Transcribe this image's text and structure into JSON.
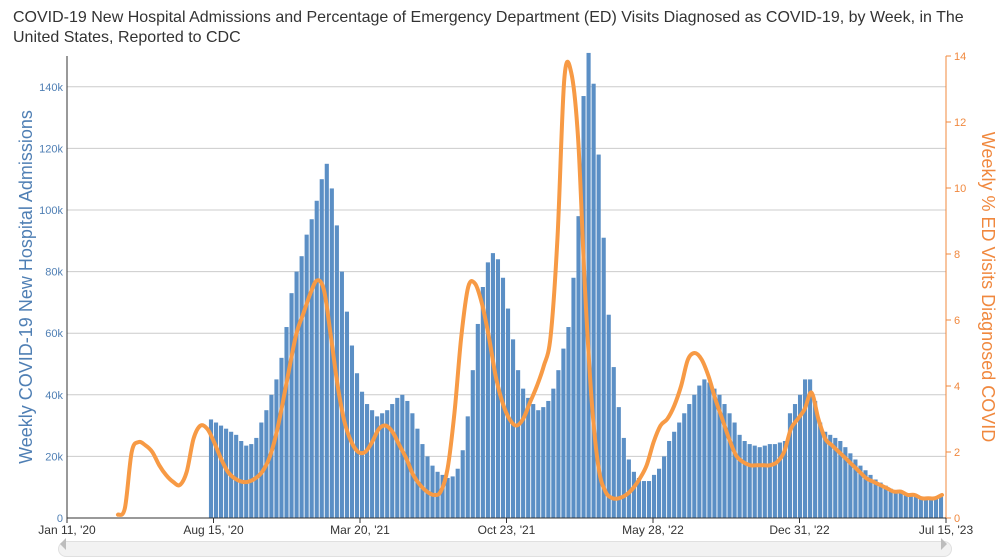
{
  "chart_data": {
    "type": "bar+line",
    "title": "COVID-19 New Hospital Admissions and Percentage of Emergency Department (ED) Visits Diagnosed as COVID-19, by Week, in The United States, Reported to CDC",
    "ylabel_left": "Weekly COVID-19 New Hospital Admissions",
    "ylabel_right": "Weekly % ED Visits Diagnosed COVID",
    "x_ticks": [
      "Jan 11, '20",
      "Aug 15, '20",
      "Mar 20, '21",
      "Oct 23, '21",
      "May 28, '22",
      "Dec 31, '22",
      "Jul 15, '23"
    ],
    "ylim_left": [
      0,
      150000
    ],
    "y_ticks_left": [
      "0",
      "20k",
      "40k",
      "60k",
      "80k",
      "100k",
      "120k",
      "140k"
    ],
    "ylim_right": [
      0,
      14
    ],
    "y_ticks_right": [
      "0",
      "2",
      "4",
      "6",
      "8",
      "10",
      "12",
      "14"
    ],
    "grid": true,
    "colors": {
      "bars": "#5b8fc5",
      "line": "#f79a45",
      "left_axis": "#4f7fb4",
      "right_axis": "#f0883e"
    },
    "series": [
      {
        "name": "Weekly COVID-19 New Hospital Admissions",
        "axis": "left",
        "type": "bar",
        "values": [
          32000,
          31000,
          30000,
          29000,
          28000,
          27000,
          25000,
          23500,
          24000,
          26000,
          31000,
          35000,
          40000,
          45000,
          52000,
          62000,
          73000,
          80000,
          85000,
          92000,
          97000,
          103000,
          110000,
          115000,
          107000,
          95000,
          80000,
          67000,
          56000,
          47000,
          41000,
          37000,
          35000,
          33000,
          34000,
          35000,
          37000,
          39000,
          40000,
          38000,
          34000,
          29000,
          24000,
          20000,
          17000,
          15000,
          14000,
          13000,
          13500,
          16000,
          22000,
          33000,
          48000,
          63000,
          75000,
          83000,
          86000,
          84000,
          78000,
          68000,
          58000,
          48000,
          42000,
          39000,
          37000,
          35000,
          36000,
          38000,
          42000,
          48000,
          55000,
          62000,
          78000,
          98000,
          137000,
          151000,
          141000,
          118000,
          91000,
          66000,
          49000,
          36000,
          26000,
          19000,
          15000,
          13000,
          12000,
          12000,
          14000,
          16000,
          20000,
          25000,
          28000,
          31000,
          34000,
          37000,
          40000,
          43000,
          45000,
          44000,
          42000,
          40000,
          37000,
          34000,
          31000,
          27000,
          25000,
          24000,
          23500,
          23000,
          23500,
          24000,
          24000,
          24500,
          25000,
          34000,
          37000,
          40000,
          45000,
          45000,
          38000,
          31000,
          28000,
          27000,
          26000,
          25000,
          23000,
          21000,
          19000,
          17000,
          15500,
          14000,
          12500,
          11500,
          10500,
          9500,
          9000,
          8500,
          8000,
          7500,
          7000,
          6500,
          6000,
          6000,
          6500,
          7000
        ]
      },
      {
        "name": "Weekly % ED Visits Diagnosed COVID",
        "axis": "right",
        "type": "line",
        "values": [
          0.1,
          0.3,
          2.0,
          2.3,
          2.2,
          2.0,
          1.6,
          1.3,
          1.1,
          1.0,
          1.4,
          2.4,
          2.8,
          2.7,
          2.3,
          1.8,
          1.4,
          1.2,
          1.1,
          1.1,
          1.2,
          1.4,
          1.8,
          2.5,
          3.5,
          4.6,
          5.6,
          6.2,
          6.8,
          7.2,
          6.9,
          5.5,
          4.0,
          2.9,
          2.3,
          2.0,
          2.0,
          2.3,
          2.7,
          2.8,
          2.6,
          2.2,
          1.8,
          1.3,
          1.0,
          0.8,
          0.7,
          0.8,
          1.5,
          3.2,
          5.5,
          7.0,
          7.1,
          6.5,
          5.5,
          4.3,
          3.5,
          3.0,
          2.8,
          3.0,
          3.5,
          4.0,
          4.6,
          5.5,
          8.5,
          13.3,
          13.5,
          11.5,
          7.0,
          3.5,
          1.5,
          0.8,
          0.6,
          0.6,
          0.7,
          0.9,
          1.2,
          1.6,
          2.3,
          2.8,
          3.0,
          3.4,
          4.0,
          4.8,
          5.0,
          4.8,
          4.3,
          3.6,
          3.0,
          2.4,
          1.9,
          1.7,
          1.6,
          1.6,
          1.6,
          1.6,
          1.7,
          2.0,
          2.7,
          3.0,
          3.3,
          3.8,
          3.0,
          2.4,
          2.2,
          2.0,
          1.8,
          1.6,
          1.4,
          1.2,
          1.1,
          1.0,
          0.9,
          0.8,
          0.8,
          0.7,
          0.7,
          0.6,
          0.6,
          0.6,
          0.7
        ]
      }
    ]
  }
}
